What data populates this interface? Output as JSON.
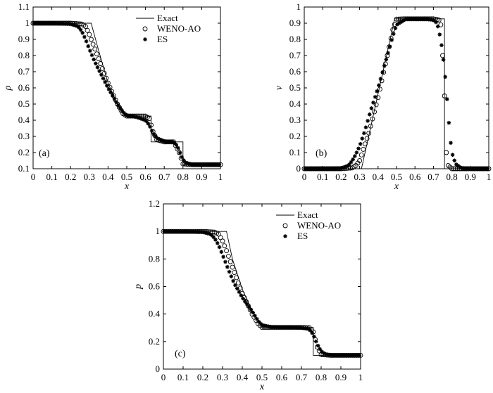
{
  "chart_data": [
    {
      "type": "line",
      "panel_label": "(a)",
      "xlabel": "x",
      "ylabel": "ρ",
      "xlim": [
        0,
        1
      ],
      "ylim": [
        0.1,
        1.1
      ],
      "xticks": [
        "0",
        "0.1",
        "0.2",
        "0.3",
        "0.4",
        "0.5",
        "0.6",
        "0.7",
        "0.8",
        "0.9",
        "1"
      ],
      "yticks": [
        "0.1",
        "0.2",
        "0.3",
        "0.4",
        "0.5",
        "0.6",
        "0.7",
        "0.8",
        "0.9",
        "1",
        "1.1"
      ],
      "legend": {
        "position": "top-right",
        "entries": [
          "Exact",
          "WENO-AO",
          "ES"
        ]
      },
      "series": [
        {
          "name": "Exact",
          "style": "line",
          "x": [
            0,
            0.31,
            0.35,
            0.4,
            0.45,
            0.49,
            0.63,
            0.63,
            0.76,
            0.76,
            0.8,
            0.8,
            1.0
          ],
          "y": [
            1.0,
            1.0,
            0.83,
            0.63,
            0.5,
            0.426,
            0.426,
            0.266,
            0.266,
            0.266,
            0.266,
            0.125,
            0.125
          ]
        },
        {
          "name": "WENO-AO",
          "style": "circle",
          "x": [
            0,
            0.1,
            0.2,
            0.26,
            0.28,
            0.3,
            0.32,
            0.35,
            0.4,
            0.45,
            0.48,
            0.5,
            0.55,
            0.6,
            0.62,
            0.64,
            0.66,
            0.7,
            0.75,
            0.78,
            0.8,
            0.85,
            0.9,
            1.0
          ],
          "y": [
            1.0,
            1.0,
            1.0,
            0.995,
            0.98,
            0.93,
            0.87,
            0.78,
            0.63,
            0.5,
            0.44,
            0.426,
            0.426,
            0.426,
            0.41,
            0.33,
            0.28,
            0.266,
            0.266,
            0.2,
            0.13,
            0.125,
            0.125,
            0.125
          ]
        },
        {
          "name": "ES",
          "style": "star",
          "x": [
            0,
            0.1,
            0.2,
            0.24,
            0.26,
            0.28,
            0.3,
            0.33,
            0.36,
            0.4,
            0.45,
            0.48,
            0.5,
            0.55,
            0.6,
            0.62,
            0.64,
            0.66,
            0.7,
            0.75,
            0.77,
            0.79,
            0.81,
            0.85,
            0.9,
            1.0
          ],
          "y": [
            1.0,
            1.0,
            0.995,
            0.98,
            0.95,
            0.9,
            0.84,
            0.76,
            0.69,
            0.6,
            0.5,
            0.45,
            0.43,
            0.42,
            0.4,
            0.37,
            0.32,
            0.29,
            0.27,
            0.265,
            0.24,
            0.18,
            0.14,
            0.125,
            0.125,
            0.125
          ]
        }
      ]
    },
    {
      "type": "line",
      "panel_label": "(b)",
      "xlabel": "x",
      "ylabel": "v",
      "xlim": [
        0,
        1
      ],
      "ylim": [
        0,
        1
      ],
      "xticks": [
        "0",
        "0.1",
        "0.2",
        "0.3",
        "0.4",
        "0.5",
        "0.6",
        "0.7",
        "0.8",
        "0.9",
        "1"
      ],
      "yticks": [
        "0",
        "0.1",
        "0.2",
        "0.3",
        "0.4",
        "0.5",
        "0.6",
        "0.7",
        "0.8",
        "0.9",
        "1"
      ],
      "series": [
        {
          "name": "Exact",
          "style": "line",
          "x": [
            0,
            0.31,
            0.49,
            0.76,
            0.76,
            1.0
          ],
          "y": [
            0,
            0,
            0.927,
            0.927,
            0,
            0
          ]
        },
        {
          "name": "WENO-AO",
          "style": "circle",
          "x": [
            0,
            0.1,
            0.2,
            0.26,
            0.28,
            0.3,
            0.32,
            0.35,
            0.4,
            0.45,
            0.48,
            0.5,
            0.55,
            0.6,
            0.65,
            0.7,
            0.73,
            0.74,
            0.75,
            0.76,
            0.77,
            0.78,
            0.8,
            0.9,
            1.0
          ],
          "y": [
            0,
            0,
            0,
            0.005,
            0.02,
            0.05,
            0.12,
            0.22,
            0.44,
            0.7,
            0.86,
            0.925,
            0.927,
            0.927,
            0.927,
            0.927,
            0.92,
            0.89,
            0.7,
            0.45,
            0.1,
            0.02,
            0,
            0,
            0
          ]
        },
        {
          "name": "ES",
          "style": "star",
          "x": [
            0,
            0.1,
            0.2,
            0.24,
            0.26,
            0.28,
            0.3,
            0.33,
            0.36,
            0.4,
            0.45,
            0.48,
            0.5,
            0.55,
            0.6,
            0.65,
            0.7,
            0.72,
            0.74,
            0.76,
            0.77,
            0.78,
            0.79,
            0.8,
            0.82,
            0.85,
            0.9,
            1.0
          ],
          "y": [
            0,
            0,
            0.003,
            0.02,
            0.05,
            0.09,
            0.14,
            0.24,
            0.36,
            0.5,
            0.7,
            0.82,
            0.89,
            0.925,
            0.927,
            0.927,
            0.92,
            0.9,
            0.8,
            0.62,
            0.49,
            0.34,
            0.2,
            0.1,
            0.03,
            0.005,
            0,
            0
          ]
        }
      ]
    },
    {
      "type": "line",
      "panel_label": "(c)",
      "xlabel": "x",
      "ylabel": "p",
      "xlim": [
        0,
        1
      ],
      "ylim": [
        0,
        1.2
      ],
      "xticks": [
        "0",
        "0.1",
        "0.2",
        "0.3",
        "0.4",
        "0.5",
        "0.6",
        "0.7",
        "0.8",
        "0.9",
        "1"
      ],
      "yticks": [
        "0",
        "0.2",
        "0.4",
        "0.6",
        "0.8",
        "1",
        "1.2"
      ],
      "legend": {
        "position": "top-right",
        "entries": [
          "Exact",
          "WENO-AO",
          "ES"
        ]
      },
      "series": [
        {
          "name": "Exact",
          "style": "line",
          "x": [
            0,
            0.32,
            0.35,
            0.4,
            0.45,
            0.5,
            0.76,
            0.76,
            1.0
          ],
          "y": [
            1.0,
            1.0,
            0.8,
            0.58,
            0.42,
            0.303,
            0.303,
            0.1,
            0.1
          ]
        },
        {
          "name": "WENO-AO",
          "style": "circle",
          "x": [
            0,
            0.1,
            0.2,
            0.26,
            0.28,
            0.3,
            0.32,
            0.35,
            0.4,
            0.45,
            0.48,
            0.5,
            0.55,
            0.6,
            0.65,
            0.7,
            0.74,
            0.76,
            0.78,
            0.8,
            0.85,
            0.9,
            1.0
          ],
          "y": [
            1.0,
            1.0,
            1.0,
            0.995,
            0.98,
            0.93,
            0.86,
            0.74,
            0.55,
            0.4,
            0.33,
            0.303,
            0.303,
            0.303,
            0.303,
            0.303,
            0.3,
            0.27,
            0.16,
            0.105,
            0.1,
            0.1,
            0.1
          ]
        },
        {
          "name": "ES",
          "style": "star",
          "x": [
            0,
            0.1,
            0.2,
            0.24,
            0.26,
            0.28,
            0.3,
            0.33,
            0.36,
            0.4,
            0.45,
            0.48,
            0.5,
            0.55,
            0.6,
            0.65,
            0.7,
            0.74,
            0.76,
            0.78,
            0.8,
            0.82,
            0.85,
            0.9,
            1.0
          ],
          "y": [
            1.0,
            1.0,
            0.995,
            0.98,
            0.95,
            0.9,
            0.83,
            0.72,
            0.62,
            0.52,
            0.42,
            0.35,
            0.32,
            0.305,
            0.303,
            0.303,
            0.3,
            0.29,
            0.25,
            0.18,
            0.13,
            0.11,
            0.1,
            0.1,
            0.1
          ]
        }
      ]
    }
  ]
}
